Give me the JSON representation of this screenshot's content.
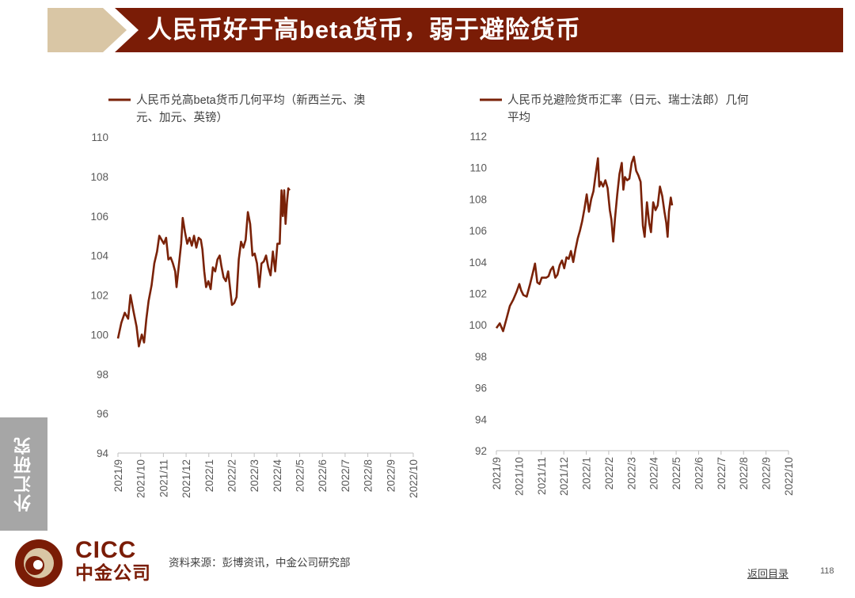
{
  "title": "人民币好于高beta货币，弱于避险货币",
  "side_tab": "外汇研究",
  "logo": {
    "en": "CICC",
    "cn": "中金公司"
  },
  "source": "资料来源：彭博资讯，中金公司研究部",
  "back_link": "返回目录",
  "page_number": "118",
  "colors": {
    "brand": "#7a1c06",
    "accent": "#d9c6a5",
    "series": "#7a2208",
    "side_tab": "#a6a6a6"
  },
  "chart_data": [
    {
      "type": "line",
      "legend_lines": [
        "人民币兑高beta货币几何平均（新西兰元、澳",
        "元、加元、英镑）"
      ],
      "series": [
        {
          "name": "人民币兑高beta货币几何平均（新西兰元、澳元、加元、英镑）",
          "points": [
            [
              0,
              99.8
            ],
            [
              0.15,
              100.6
            ],
            [
              0.3,
              101.1
            ],
            [
              0.45,
              100.8
            ],
            [
              0.55,
              102.0
            ],
            [
              0.68,
              101.2
            ],
            [
              0.82,
              100.4
            ],
            [
              0.92,
              99.4
            ],
            [
              1.05,
              100.0
            ],
            [
              1.15,
              99.6
            ],
            [
              1.25,
              100.8
            ],
            [
              1.35,
              101.7
            ],
            [
              1.48,
              102.5
            ],
            [
              1.6,
              103.6
            ],
            [
              1.72,
              104.2
            ],
            [
              1.82,
              105.0
            ],
            [
              1.92,
              104.8
            ],
            [
              2.02,
              104.6
            ],
            [
              2.12,
              104.9
            ],
            [
              2.22,
              103.8
            ],
            [
              2.32,
              103.9
            ],
            [
              2.42,
              103.6
            ],
            [
              2.52,
              103.2
            ],
            [
              2.58,
              102.4
            ],
            [
              2.68,
              103.5
            ],
            [
              2.78,
              104.6
            ],
            [
              2.85,
              105.9
            ],
            [
              2.95,
              105.2
            ],
            [
              3.05,
              104.6
            ],
            [
              3.15,
              104.9
            ],
            [
              3.25,
              104.5
            ],
            [
              3.35,
              105.0
            ],
            [
              3.45,
              104.4
            ],
            [
              3.55,
              104.9
            ],
            [
              3.65,
              104.8
            ],
            [
              3.72,
              104.3
            ],
            [
              3.8,
              103.2
            ],
            [
              3.88,
              102.4
            ],
            [
              3.98,
              102.7
            ],
            [
              4.08,
              102.3
            ],
            [
              4.18,
              103.4
            ],
            [
              4.28,
              103.2
            ],
            [
              4.38,
              103.8
            ],
            [
              4.48,
              104.0
            ],
            [
              4.55,
              103.5
            ],
            [
              4.65,
              102.9
            ],
            [
              4.75,
              102.7
            ],
            [
              4.85,
              103.2
            ],
            [
              4.92,
              102.5
            ],
            [
              5.02,
              101.5
            ],
            [
              5.12,
              101.6
            ],
            [
              5.22,
              101.9
            ],
            [
              5.32,
              103.8
            ],
            [
              5.42,
              104.7
            ],
            [
              5.52,
              104.4
            ],
            [
              5.62,
              104.8
            ],
            [
              5.72,
              106.2
            ],
            [
              5.82,
              105.6
            ],
            [
              5.92,
              104.0
            ],
            [
              6.02,
              104.1
            ],
            [
              6.12,
              103.6
            ],
            [
              6.22,
              102.4
            ],
            [
              6.32,
              103.6
            ],
            [
              6.42,
              103.7
            ],
            [
              6.52,
              104.0
            ],
            [
              6.62,
              103.4
            ],
            [
              6.72,
              103.0
            ],
            [
              6.82,
              104.2
            ],
            [
              6.92,
              103.2
            ],
            [
              7.02,
              104.6
            ],
            [
              7.12,
              104.6
            ],
            [
              7.2,
              107.3
            ],
            [
              7.26,
              106.0
            ],
            [
              7.32,
              107.3
            ],
            [
              7.38,
              105.6
            ],
            [
              7.44,
              106.7
            ],
            [
              7.5,
              107.4
            ],
            [
              7.56,
              107.3
            ]
          ]
        }
      ],
      "x_categories": [
        "2021/9",
        "2021/10",
        "2021/11",
        "2021/12",
        "2022/1",
        "2022/2",
        "2022/3",
        "2022/4",
        "2022/5",
        "2022/6",
        "2022/7",
        "2022/8",
        "2022/9",
        "2022/10"
      ],
      "y_ticks": [
        "94",
        "96",
        "98",
        "100",
        "102",
        "104",
        "106",
        "108",
        "110"
      ],
      "xlim": [
        0,
        13
      ],
      "ylim": [
        94,
        110
      ],
      "grid": false
    },
    {
      "type": "line",
      "legend_lines": [
        "人民币兑避险货币汇率（日元、瑞士法郎）几何",
        "平均"
      ],
      "series": [
        {
          "name": "人民币兑避险货币汇率（日元、瑞士法郎）几何平均",
          "points": [
            [
              0,
              99.8
            ],
            [
              0.15,
              100.1
            ],
            [
              0.3,
              99.6
            ],
            [
              0.45,
              100.4
            ],
            [
              0.6,
              101.2
            ],
            [
              0.75,
              101.6
            ],
            [
              0.9,
              102.1
            ],
            [
              1.02,
              102.6
            ],
            [
              1.1,
              102.2
            ],
            [
              1.2,
              101.9
            ],
            [
              1.35,
              101.8
            ],
            [
              1.5,
              102.6
            ],
            [
              1.62,
              103.3
            ],
            [
              1.72,
              103.9
            ],
            [
              1.82,
              102.7
            ],
            [
              1.92,
              102.6
            ],
            [
              2.02,
              103.0
            ],
            [
              2.12,
              103.0
            ],
            [
              2.22,
              103.0
            ],
            [
              2.32,
              103.1
            ],
            [
              2.42,
              103.5
            ],
            [
              2.52,
              103.7
            ],
            [
              2.62,
              103.0
            ],
            [
              2.72,
              103.2
            ],
            [
              2.82,
              103.8
            ],
            [
              2.92,
              104.1
            ],
            [
              3.02,
              103.6
            ],
            [
              3.12,
              104.3
            ],
            [
              3.22,
              104.2
            ],
            [
              3.32,
              104.7
            ],
            [
              3.42,
              104.0
            ],
            [
              3.52,
              104.8
            ],
            [
              3.62,
              105.5
            ],
            [
              3.72,
              106.0
            ],
            [
              3.82,
              106.6
            ],
            [
              3.92,
              107.4
            ],
            [
              4.02,
              108.3
            ],
            [
              4.12,
              107.2
            ],
            [
              4.22,
              108.0
            ],
            [
              4.32,
              108.5
            ],
            [
              4.42,
              109.6
            ],
            [
              4.52,
              110.6
            ],
            [
              4.58,
              108.8
            ],
            [
              4.65,
              109.1
            ],
            [
              4.75,
              108.8
            ],
            [
              4.85,
              109.2
            ],
            [
              4.95,
              108.7
            ],
            [
              5.05,
              107.3
            ],
            [
              5.12,
              106.7
            ],
            [
              5.2,
              105.3
            ],
            [
              5.28,
              106.8
            ],
            [
              5.38,
              108.3
            ],
            [
              5.48,
              109.6
            ],
            [
              5.58,
              110.3
            ],
            [
              5.65,
              108.6
            ],
            [
              5.72,
              109.4
            ],
            [
              5.82,
              109.2
            ],
            [
              5.92,
              109.3
            ],
            [
              6.02,
              110.3
            ],
            [
              6.12,
              110.7
            ],
            [
              6.22,
              109.8
            ],
            [
              6.32,
              109.5
            ],
            [
              6.42,
              109.1
            ],
            [
              6.52,
              106.3
            ],
            [
              6.6,
              105.6
            ],
            [
              6.7,
              107.8
            ],
            [
              6.8,
              106.5
            ],
            [
              6.88,
              105.9
            ],
            [
              6.98,
              107.8
            ],
            [
              7.08,
              107.3
            ],
            [
              7.18,
              107.6
            ],
            [
              7.28,
              108.8
            ],
            [
              7.38,
              108.2
            ],
            [
              7.48,
              107.2
            ],
            [
              7.56,
              106.5
            ],
            [
              7.62,
              105.6
            ],
            [
              7.68,
              107.2
            ],
            [
              7.76,
              108.1
            ],
            [
              7.82,
              107.6
            ]
          ]
        }
      ],
      "x_categories": [
        "2021/9",
        "2021/10",
        "2021/11",
        "2021/12",
        "2022/1",
        "2022/2",
        "2022/3",
        "2022/4",
        "2022/5",
        "2022/6",
        "2022/7",
        "2022/8",
        "2022/9",
        "2022/10"
      ],
      "y_ticks": [
        "92",
        "94",
        "96",
        "98",
        "100",
        "102",
        "104",
        "106",
        "108",
        "110",
        "112"
      ],
      "xlim": [
        0,
        13
      ],
      "ylim": [
        92,
        112
      ],
      "grid": false
    }
  ]
}
